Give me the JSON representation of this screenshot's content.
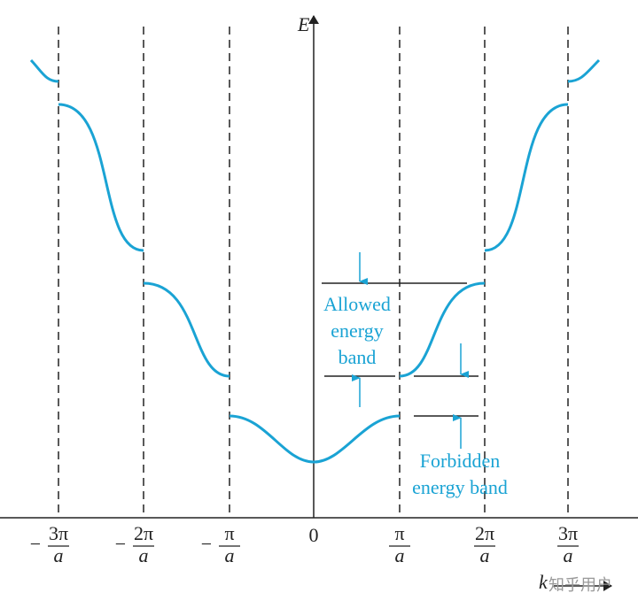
{
  "axis": {
    "y_label": "E",
    "x_label": "k"
  },
  "ticks": [
    {
      "sign": "−",
      "numerator": "3π",
      "denominator": "a"
    },
    {
      "sign": "−",
      "numerator": "2π",
      "denominator": "a"
    },
    {
      "sign": "−",
      "numerator": "π",
      "denominator": "a"
    },
    {
      "label": "0"
    },
    {
      "numerator": "π",
      "denominator": "a"
    },
    {
      "numerator": "2π",
      "denominator": "a"
    },
    {
      "numerator": "3π",
      "denominator": "a"
    }
  ],
  "annotations": {
    "allowed": [
      "Allowed",
      "energy",
      "band"
    ],
    "forbidden": [
      "Forbidden",
      "energy band"
    ]
  },
  "watermark": "知乎用户"
}
